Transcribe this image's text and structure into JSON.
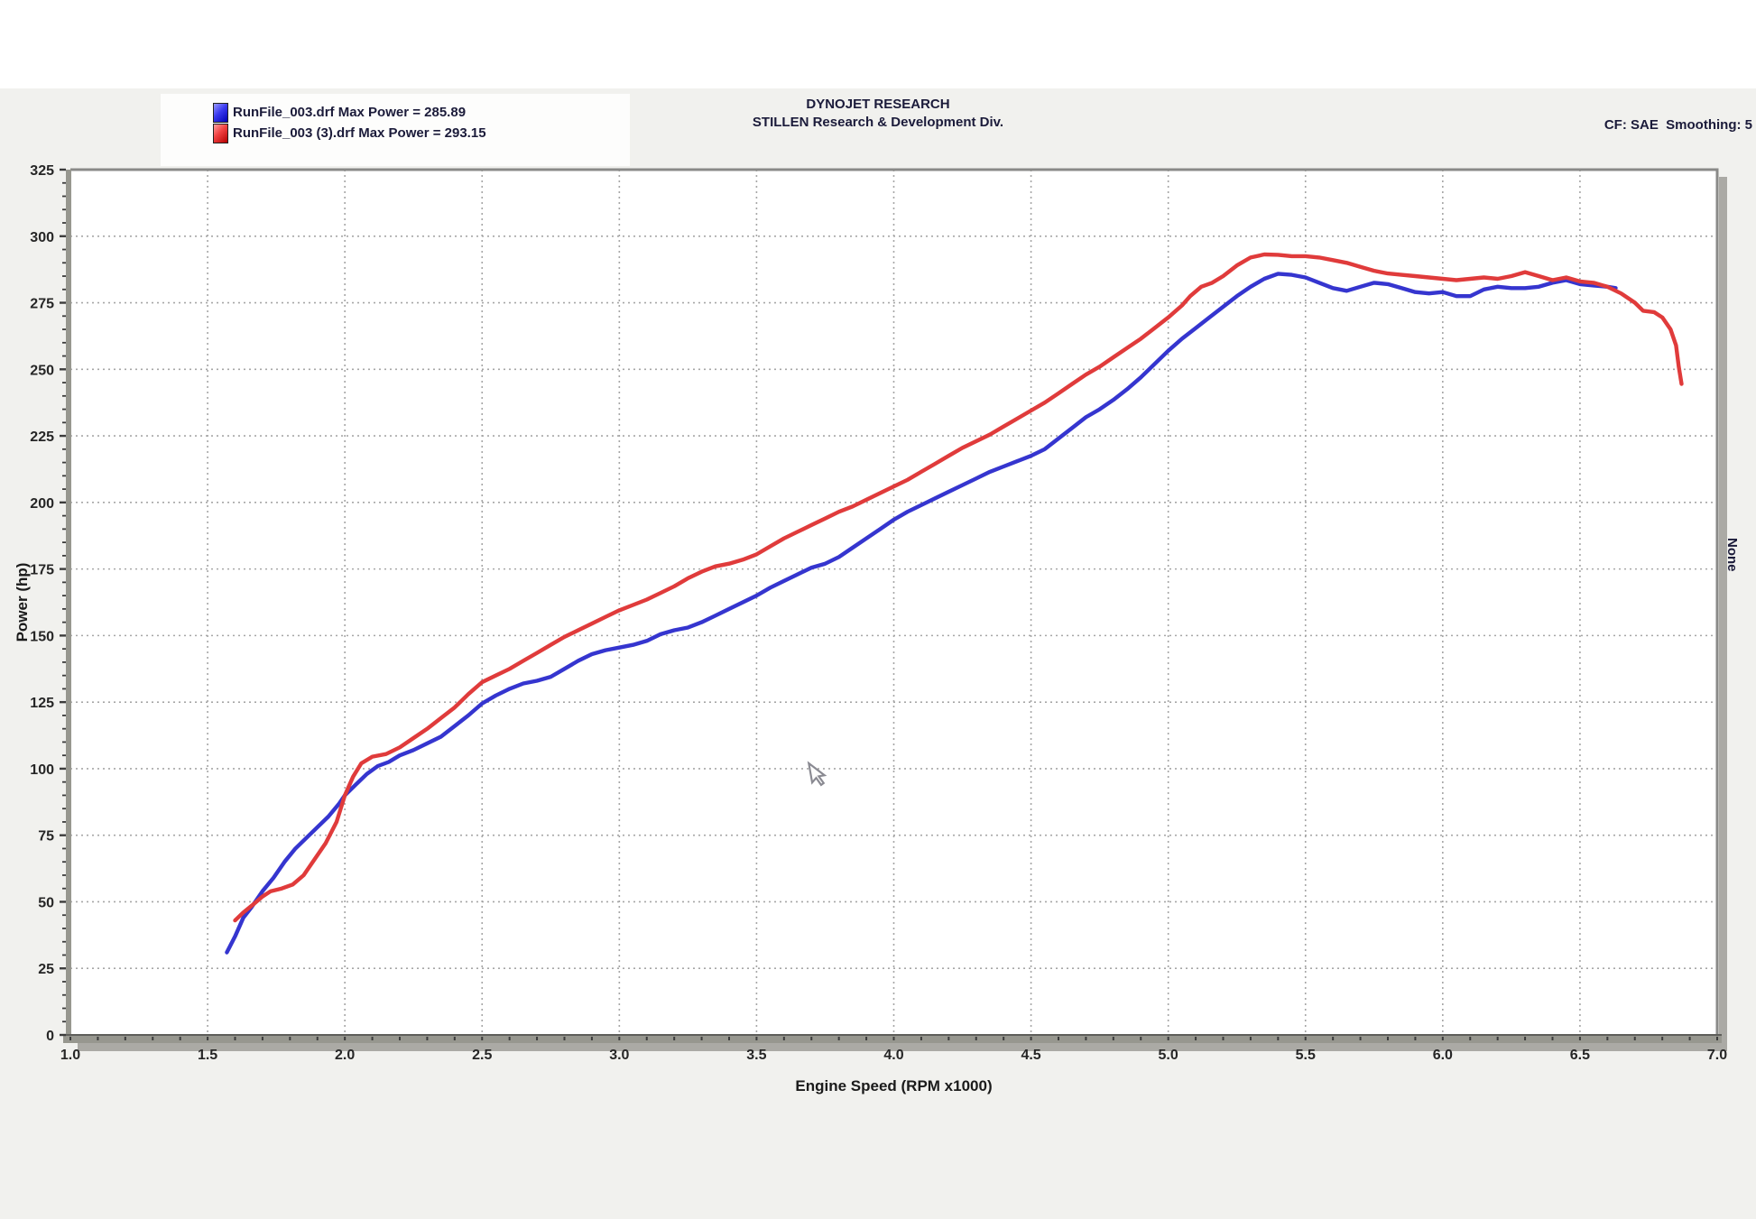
{
  "header": {
    "line1": "DYNOJET RESEARCH",
    "line2": "STILLEN Research & Development Div."
  },
  "top_right_note": "CF: SAE  Smoothing: 5",
  "right_edge_label": "None",
  "legend": {
    "runs": [
      {
        "label": "RunFile_003.drf Max Power = 285.89",
        "swatch_color": "#2a2ad2"
      },
      {
        "label": "RunFile_003 (3).drf Max Power = 293.15",
        "swatch_color": "#d42a2a"
      }
    ]
  },
  "cursor": {
    "rpm": 3.71,
    "hp": 100
  },
  "chart_data": {
    "type": "line",
    "title": "DYNOJET RESEARCH — STILLEN Research & Development Div.",
    "xlabel": "Engine Speed (RPM x1000)",
    "ylabel": "Power (hp)",
    "xlim": [
      1.0,
      7.0
    ],
    "ylim": [
      0,
      325
    ],
    "xticks": [
      "1.0",
      "1.5",
      "2.0",
      "2.5",
      "3.0",
      "3.5",
      "4.0",
      "4.5",
      "5.0",
      "5.5",
      "6.0",
      "6.5",
      "7.0"
    ],
    "yticks": [
      0,
      25,
      50,
      75,
      100,
      125,
      150,
      175,
      200,
      225,
      250,
      275,
      300,
      325
    ],
    "minor_x_step": 0.1,
    "minor_y_step": 5,
    "grid": true,
    "legend_position": "top-left",
    "correction_factor": "SAE",
    "smoothing": 5,
    "series": [
      {
        "name": "RunFile_003.drf",
        "max_power": 285.89,
        "color": "#3535cf",
        "points": [
          [
            1.57,
            31
          ],
          [
            1.6,
            37
          ],
          [
            1.63,
            44
          ],
          [
            1.66,
            48
          ],
          [
            1.7,
            54
          ],
          [
            1.74,
            59
          ],
          [
            1.78,
            65
          ],
          [
            1.82,
            70
          ],
          [
            1.86,
            74
          ],
          [
            1.9,
            78
          ],
          [
            1.94,
            82
          ],
          [
            1.98,
            87
          ],
          [
            2.0,
            90
          ],
          [
            2.04,
            94
          ],
          [
            2.08,
            98
          ],
          [
            2.12,
            101
          ],
          [
            2.16,
            102.5
          ],
          [
            2.2,
            105
          ],
          [
            2.25,
            107
          ],
          [
            2.3,
            109.5
          ],
          [
            2.35,
            112
          ],
          [
            2.4,
            116
          ],
          [
            2.45,
            120
          ],
          [
            2.5,
            124.5
          ],
          [
            2.55,
            127.5
          ],
          [
            2.6,
            130
          ],
          [
            2.65,
            132
          ],
          [
            2.7,
            133
          ],
          [
            2.75,
            134.5
          ],
          [
            2.8,
            137.5
          ],
          [
            2.85,
            140.5
          ],
          [
            2.9,
            143
          ],
          [
            2.95,
            144.5
          ],
          [
            3.0,
            145.5
          ],
          [
            3.05,
            146.5
          ],
          [
            3.1,
            148
          ],
          [
            3.15,
            150.5
          ],
          [
            3.2,
            152
          ],
          [
            3.25,
            153
          ],
          [
            3.3,
            155
          ],
          [
            3.35,
            157.5
          ],
          [
            3.4,
            160
          ],
          [
            3.45,
            162.5
          ],
          [
            3.5,
            165
          ],
          [
            3.55,
            168
          ],
          [
            3.6,
            170.5
          ],
          [
            3.65,
            173
          ],
          [
            3.7,
            175.5
          ],
          [
            3.75,
            177
          ],
          [
            3.8,
            179.5
          ],
          [
            3.85,
            183
          ],
          [
            3.9,
            186.5
          ],
          [
            3.95,
            190
          ],
          [
            4.0,
            193.5
          ],
          [
            4.05,
            196.5
          ],
          [
            4.1,
            199
          ],
          [
            4.15,
            201.5
          ],
          [
            4.2,
            204
          ],
          [
            4.25,
            206.5
          ],
          [
            4.3,
            209
          ],
          [
            4.35,
            211.5
          ],
          [
            4.4,
            213.5
          ],
          [
            4.45,
            215.5
          ],
          [
            4.5,
            217.5
          ],
          [
            4.55,
            220
          ],
          [
            4.6,
            224
          ],
          [
            4.65,
            228
          ],
          [
            4.7,
            232
          ],
          [
            4.75,
            235
          ],
          [
            4.8,
            238.5
          ],
          [
            4.85,
            242.5
          ],
          [
            4.9,
            247
          ],
          [
            4.95,
            252
          ],
          [
            5.0,
            257
          ],
          [
            5.05,
            261.5
          ],
          [
            5.1,
            265.5
          ],
          [
            5.15,
            269.5
          ],
          [
            5.2,
            273.5
          ],
          [
            5.25,
            277.5
          ],
          [
            5.3,
            281
          ],
          [
            5.35,
            284
          ],
          [
            5.4,
            285.89
          ],
          [
            5.45,
            285.5
          ],
          [
            5.5,
            284.5
          ],
          [
            5.55,
            282.5
          ],
          [
            5.6,
            280.5
          ],
          [
            5.65,
            279.5
          ],
          [
            5.7,
            281
          ],
          [
            5.75,
            282.5
          ],
          [
            5.8,
            282
          ],
          [
            5.85,
            280.5
          ],
          [
            5.9,
            279
          ],
          [
            5.95,
            278.5
          ],
          [
            6.0,
            279
          ],
          [
            6.05,
            277.5
          ],
          [
            6.1,
            277.5
          ],
          [
            6.15,
            280
          ],
          [
            6.2,
            281
          ],
          [
            6.25,
            280.5
          ],
          [
            6.3,
            280.5
          ],
          [
            6.35,
            281
          ],
          [
            6.4,
            282.5
          ],
          [
            6.45,
            283.5
          ],
          [
            6.5,
            282
          ],
          [
            6.55,
            281.5
          ],
          [
            6.6,
            281
          ],
          [
            6.63,
            280.5
          ]
        ]
      },
      {
        "name": "RunFile_003 (3).drf",
        "max_power": 293.15,
        "color": "#e03b3b",
        "points": [
          [
            1.6,
            43
          ],
          [
            1.63,
            46
          ],
          [
            1.66,
            48.5
          ],
          [
            1.7,
            52
          ],
          [
            1.73,
            54
          ],
          [
            1.77,
            55
          ],
          [
            1.81,
            56.5
          ],
          [
            1.85,
            60
          ],
          [
            1.89,
            66
          ],
          [
            1.93,
            72
          ],
          [
            1.97,
            80
          ],
          [
            2.0,
            90
          ],
          [
            2.03,
            97
          ],
          [
            2.06,
            102
          ],
          [
            2.1,
            104.5
          ],
          [
            2.15,
            105.5
          ],
          [
            2.2,
            108
          ],
          [
            2.25,
            111.5
          ],
          [
            2.3,
            115
          ],
          [
            2.35,
            119
          ],
          [
            2.4,
            123
          ],
          [
            2.45,
            128
          ],
          [
            2.5,
            132.5
          ],
          [
            2.55,
            135
          ],
          [
            2.6,
            137.5
          ],
          [
            2.65,
            140.5
          ],
          [
            2.7,
            143.5
          ],
          [
            2.75,
            146.5
          ],
          [
            2.8,
            149.5
          ],
          [
            2.85,
            152
          ],
          [
            2.9,
            154.5
          ],
          [
            2.95,
            157
          ],
          [
            3.0,
            159.5
          ],
          [
            3.05,
            161.5
          ],
          [
            3.1,
            163.5
          ],
          [
            3.15,
            166
          ],
          [
            3.2,
            168.5
          ],
          [
            3.25,
            171.5
          ],
          [
            3.3,
            174
          ],
          [
            3.35,
            176
          ],
          [
            3.4,
            177
          ],
          [
            3.45,
            178.5
          ],
          [
            3.5,
            180.5
          ],
          [
            3.55,
            183.5
          ],
          [
            3.6,
            186.5
          ],
          [
            3.65,
            189
          ],
          [
            3.7,
            191.5
          ],
          [
            3.75,
            194
          ],
          [
            3.8,
            196.5
          ],
          [
            3.85,
            198.5
          ],
          [
            3.9,
            201
          ],
          [
            3.95,
            203.5
          ],
          [
            4.0,
            206
          ],
          [
            4.05,
            208.5
          ],
          [
            4.1,
            211.5
          ],
          [
            4.15,
            214.5
          ],
          [
            4.2,
            217.5
          ],
          [
            4.25,
            220.5
          ],
          [
            4.3,
            223
          ],
          [
            4.35,
            225.5
          ],
          [
            4.4,
            228.5
          ],
          [
            4.45,
            231.5
          ],
          [
            4.5,
            234.5
          ],
          [
            4.55,
            237.5
          ],
          [
            4.6,
            241
          ],
          [
            4.65,
            244.5
          ],
          [
            4.7,
            248
          ],
          [
            4.75,
            251
          ],
          [
            4.8,
            254.5
          ],
          [
            4.85,
            258
          ],
          [
            4.9,
            261.5
          ],
          [
            4.95,
            265.5
          ],
          [
            5.0,
            269.5
          ],
          [
            5.05,
            274
          ],
          [
            5.08,
            277.5
          ],
          [
            5.12,
            281
          ],
          [
            5.16,
            282.5
          ],
          [
            5.2,
            285
          ],
          [
            5.25,
            289
          ],
          [
            5.3,
            292
          ],
          [
            5.35,
            293.15
          ],
          [
            5.4,
            293
          ],
          [
            5.45,
            292.5
          ],
          [
            5.5,
            292.5
          ],
          [
            5.55,
            292
          ],
          [
            5.6,
            291
          ],
          [
            5.65,
            290
          ],
          [
            5.7,
            288.5
          ],
          [
            5.75,
            287
          ],
          [
            5.8,
            286
          ],
          [
            5.85,
            285.5
          ],
          [
            5.9,
            285
          ],
          [
            5.95,
            284.5
          ],
          [
            6.0,
            284
          ],
          [
            6.05,
            283.5
          ],
          [
            6.1,
            284
          ],
          [
            6.15,
            284.5
          ],
          [
            6.2,
            284
          ],
          [
            6.25,
            285
          ],
          [
            6.3,
            286.5
          ],
          [
            6.35,
            285
          ],
          [
            6.4,
            283.5
          ],
          [
            6.45,
            284.5
          ],
          [
            6.5,
            283
          ],
          [
            6.55,
            282.5
          ],
          [
            6.6,
            281
          ],
          [
            6.65,
            278.5
          ],
          [
            6.7,
            275
          ],
          [
            6.73,
            272
          ],
          [
            6.77,
            271.5
          ],
          [
            6.8,
            269.5
          ],
          [
            6.83,
            265
          ],
          [
            6.85,
            259
          ],
          [
            6.86,
            251
          ],
          [
            6.87,
            244.5
          ]
        ]
      }
    ]
  }
}
